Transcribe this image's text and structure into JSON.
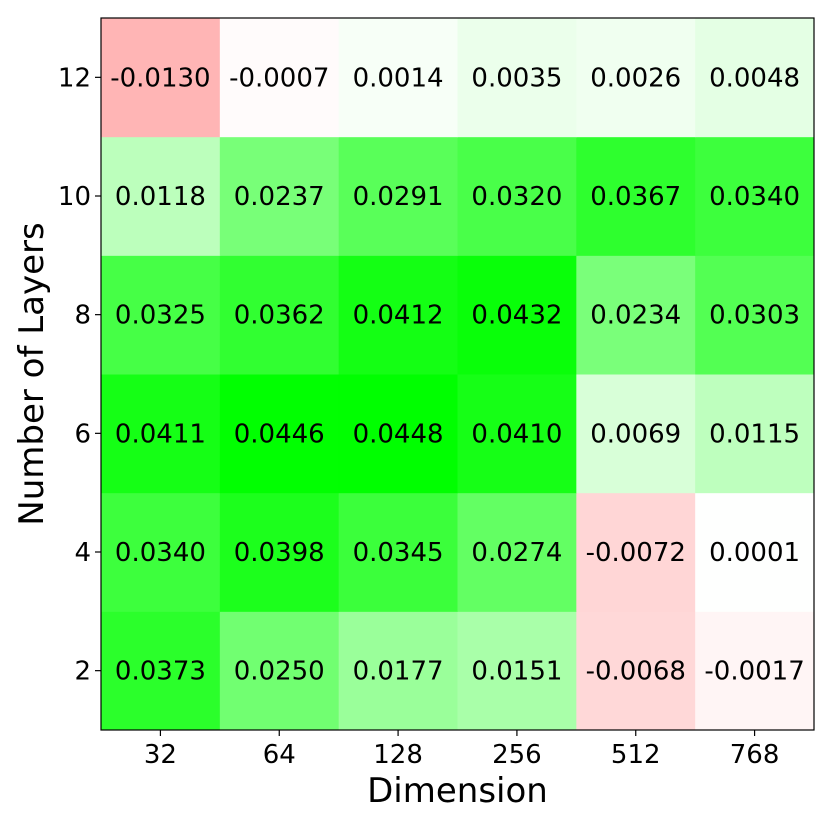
{
  "chart_data": {
    "type": "heatmap",
    "title": "",
    "xlabel": "Dimension",
    "ylabel": "Number of Layers",
    "x_categories": [
      "32",
      "64",
      "128",
      "256",
      "512",
      "768"
    ],
    "y_categories": [
      "2",
      "4",
      "6",
      "8",
      "10",
      "12"
    ],
    "values": [
      [
        0.0373,
        0.025,
        0.0177,
        0.0151,
        -0.0068,
        -0.0017
      ],
      [
        0.034,
        0.0398,
        0.0345,
        0.0274,
        -0.0072,
        0.0001
      ],
      [
        0.0411,
        0.0446,
        0.0448,
        0.041,
        0.0069,
        0.0115
      ],
      [
        0.0325,
        0.0362,
        0.0412,
        0.0432,
        0.0234,
        0.0303
      ],
      [
        0.0118,
        0.0237,
        0.0291,
        0.032,
        0.0367,
        0.034
      ],
      [
        -0.013,
        -0.0007,
        0.0014,
        0.0035,
        0.0026,
        0.0048
      ]
    ],
    "labels": [
      [
        "0.0373",
        "0.0250",
        "0.0177",
        "0.0151",
        "-0.0068",
        "-0.0017"
      ],
      [
        "0.0340",
        "0.0398",
        "0.0345",
        "0.0274",
        "-0.0072",
        "0.0001"
      ],
      [
        "0.0411",
        "0.0446",
        "0.0448",
        "0.0410",
        "0.0069",
        "0.0115"
      ],
      [
        "0.0325",
        "0.0362",
        "0.0412",
        "0.0432",
        "0.0234",
        "0.0303"
      ],
      [
        "0.0118",
        "0.0237",
        "0.0291",
        "0.0320",
        "0.0367",
        "0.0340"
      ],
      [
        "-0.0130",
        "-0.0007",
        "0.0014",
        "0.0035",
        "0.0026",
        "0.0048"
      ]
    ],
    "color_scale": {
      "negative": "#ff0000",
      "zero": "#ffffff",
      "positive": "#00ff00",
      "min": -0.0448,
      "max": 0.0448
    },
    "grid": false,
    "legend": "none"
  }
}
